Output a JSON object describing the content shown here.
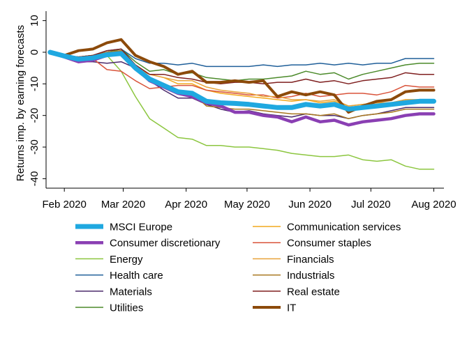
{
  "chart_data": {
    "type": "line",
    "ylabel": "Returns imp. by earning forecasts",
    "xlabel": "",
    "title": "",
    "x_ticks": [
      "Feb 2020",
      "Mar 2020",
      "Apr 2020",
      "May 2020",
      "Jun 2020",
      "Jul 2020",
      "Aug 2020"
    ],
    "x_tick_days": [
      0,
      29,
      60,
      90,
      121,
      151,
      182
    ],
    "y_ticks": [
      10,
      0,
      -10,
      -20,
      -30,
      -40
    ],
    "ylim": [
      -43,
      13
    ],
    "xlim": [
      -9,
      187
    ],
    "x_days": [
      -7,
      0,
      7,
      14,
      21,
      28,
      35,
      42,
      49,
      56,
      63,
      70,
      77,
      84,
      91,
      98,
      105,
      112,
      119,
      126,
      133,
      140,
      147,
      154,
      161,
      168,
      175,
      182
    ],
    "grid": false,
    "legend_position": "bottom",
    "series": [
      {
        "name": "MSCI Europe",
        "color": "#1fa8e0",
        "width": 7,
        "values": [
          0,
          -1.2,
          -2.2,
          -1.8,
          -0.8,
          -0.4,
          -5,
          -8.5,
          -10.5,
          -12.5,
          -13,
          -15.5,
          -16,
          -16.2,
          -16.5,
          -17,
          -17.5,
          -17.5,
          -16.5,
          -17,
          -16.5,
          -18,
          -17.5,
          -17,
          -16.5,
          -16,
          -15.5,
          -15.5
        ]
      },
      {
        "name": "Consumer discretionary",
        "color": "#8a3fb3",
        "width": 4.5,
        "values": [
          0,
          -1.5,
          -3,
          -2.5,
          -1,
          -0.5,
          -5,
          -9,
          -11,
          -13,
          -14,
          -16,
          -17,
          -19,
          -19,
          -20,
          -20.5,
          -22,
          -20.5,
          -22,
          -21.5,
          -23,
          -22,
          -21.5,
          -21,
          -20,
          -19.5,
          -19.5
        ]
      },
      {
        "name": "Energy",
        "color": "#8cc63f",
        "width": 1.5,
        "values": [
          0,
          -1,
          -2,
          -2.5,
          -1,
          -6,
          -14,
          -21,
          -24,
          -27,
          -27.5,
          -29.5,
          -29.5,
          -30,
          -30,
          -30.5,
          -31,
          -32,
          -32.5,
          -33,
          -33,
          -32.5,
          -34,
          -34.5,
          -34,
          -36,
          -37,
          -37
        ]
      },
      {
        "name": "Health care",
        "color": "#1f5f99",
        "width": 1.5,
        "values": [
          0,
          -1,
          -1.5,
          -1,
          0.5,
          1,
          -2,
          -3.5,
          -3.5,
          -4,
          -3.5,
          -4.5,
          -4.5,
          -4.5,
          -4.5,
          -4,
          -4.5,
          -4,
          -4,
          -3.5,
          -4,
          -3.5,
          -4,
          -3.5,
          -3.5,
          -2,
          -2,
          -2
        ]
      },
      {
        "name": "Materials",
        "color": "#4b2a6b",
        "width": 1.5,
        "values": [
          0,
          -1.5,
          -3,
          -3,
          -3.5,
          -3,
          -5,
          -9,
          -12,
          -14.5,
          -14.5,
          -16.5,
          -18,
          -19,
          -18.5,
          -19.5,
          -20,
          -20.5,
          -19.5,
          -20,
          -20,
          -21,
          -20,
          -19.5,
          -18.5,
          -17.5,
          -17.5,
          -17.5
        ]
      },
      {
        "name": "Utilities",
        "color": "#4b8a2a",
        "width": 1.5,
        "values": [
          0,
          -1,
          -1.5,
          -1,
          0,
          1,
          -3,
          -6,
          -5.5,
          -7,
          -6.5,
          -8,
          -8.5,
          -9,
          -8.5,
          -8.5,
          -8,
          -7.5,
          -6,
          -7,
          -6.5,
          -8.5,
          -7,
          -6,
          -5,
          -4,
          -3.5,
          -3.5
        ]
      },
      {
        "name": "Communication services",
        "color": "#f2a91e",
        "width": 1.5,
        "values": [
          0,
          -1,
          -1.5,
          -1,
          0,
          0.5,
          -5,
          -7,
          -8,
          -10,
          -10,
          -12,
          -13,
          -13.5,
          -14,
          -14.5,
          -15,
          -15.5,
          -15,
          -16,
          -15.5,
          -17,
          -16.5,
          -16,
          -16,
          -15,
          -15,
          -15
        ]
      },
      {
        "name": "Consumer staples",
        "color": "#d9533a",
        "width": 1.5,
        "values": [
          0,
          -1,
          -2,
          -2,
          -5.5,
          -6,
          -9,
          -11.5,
          -11,
          -10.5,
          -10.5,
          -12,
          -12.5,
          -13,
          -13.5,
          -13.5,
          -14.5,
          -14,
          -13,
          -14,
          -13.5,
          -13,
          -13,
          -13.5,
          -12.5,
          -10.5,
          -11,
          -11
        ]
      },
      {
        "name": "Financials",
        "color": "#e8a33a",
        "width": 1.5,
        "values": [
          0,
          -1,
          -1.5,
          -1,
          0,
          0.5,
          -4,
          -7,
          -8,
          -9,
          -9,
          -11,
          -12,
          -12.5,
          -13,
          -14,
          -14,
          -15,
          -15,
          -15.5,
          -15,
          -17,
          -16.5,
          -16,
          -16,
          -15,
          -15,
          -15
        ]
      },
      {
        "name": "Industrials",
        "color": "#a8771f",
        "width": 1.5,
        "values": [
          0,
          -1,
          -1.5,
          -1,
          0,
          0.5,
          -5,
          -9,
          -10,
          -12,
          -13,
          -17,
          -17.5,
          -18,
          -18,
          -18.5,
          -19,
          -19.5,
          -19.5,
          -20,
          -19.5,
          -21,
          -20,
          -19.5,
          -19,
          -18,
          -18,
          -18
        ]
      },
      {
        "name": "Real estate",
        "color": "#7f1f1f",
        "width": 1.5,
        "values": [
          0,
          -1,
          -1.5,
          -1,
          0.5,
          1,
          -4,
          -7,
          -7,
          -8,
          -8.5,
          -9.5,
          -10,
          -9.5,
          -9.5,
          -10,
          -9.5,
          -9.5,
          -8.5,
          -9.5,
          -9,
          -10,
          -9,
          -8.5,
          -8,
          -6.5,
          -7,
          -7
        ]
      },
      {
        "name": "IT",
        "color": "#8c4a0a",
        "width": 4,
        "values": [
          0,
          -1,
          0.5,
          1,
          3,
          4,
          -1,
          -3,
          -4.5,
          -7,
          -6,
          -9.5,
          -9.5,
          -9,
          -9.5,
          -9,
          -14,
          -12.5,
          -13.5,
          -12.5,
          -13.5,
          -19,
          -17,
          -15.5,
          -15,
          -12.5,
          -12,
          -12
        ]
      }
    ]
  }
}
